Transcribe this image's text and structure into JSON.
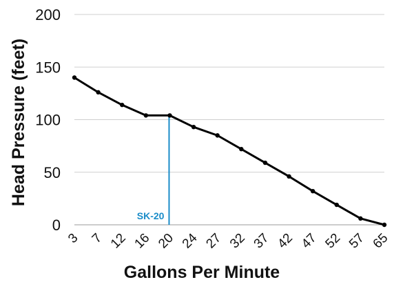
{
  "chart_data": {
    "type": "line",
    "title": "",
    "xlabel": "Gallons Per Minute",
    "ylabel": "Head Pressure (feet)",
    "ylim": [
      0,
      200
    ],
    "yticks": [
      "0",
      "50",
      "100",
      "150",
      "200"
    ],
    "grid": true,
    "legend": "none",
    "categories": [
      "3",
      "7",
      "12",
      "16",
      "20",
      "24",
      "27",
      "32",
      "37",
      "42",
      "47",
      "52",
      "57",
      "65"
    ],
    "series": [
      {
        "values": [
          140,
          126,
          114,
          104,
          104,
          93,
          85,
          72,
          59,
          46,
          32,
          19,
          6,
          0
        ],
        "color": "#000000"
      }
    ],
    "annotation": {
      "label": "SK-20",
      "category": "20",
      "color": "#1a8cc8"
    }
  }
}
